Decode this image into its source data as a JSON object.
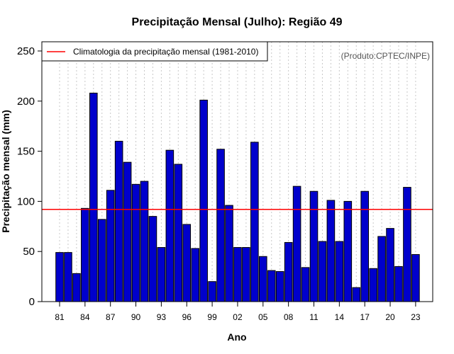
{
  "chart_data": {
    "type": "bar",
    "title": "Precipitação Mensal (Julho): Região 49",
    "xlabel": "Ano",
    "ylabel": "Precipitação mensal (mm)",
    "ylim": [
      0,
      250
    ],
    "yticks": [
      0,
      50,
      100,
      150,
      200,
      250
    ],
    "grid": "vertical dotted",
    "categories": [
      "1981",
      "1982",
      "1983",
      "1984",
      "1985",
      "1986",
      "1987",
      "1988",
      "1989",
      "1990",
      "1991",
      "1992",
      "1993",
      "1994",
      "1995",
      "1996",
      "1997",
      "1998",
      "1999",
      "2000",
      "2001",
      "2002",
      "2003",
      "2004",
      "2005",
      "2006",
      "2007",
      "2008",
      "2009",
      "2010",
      "2011",
      "2012",
      "2013",
      "2014",
      "2015",
      "2016",
      "2017",
      "2018",
      "2019",
      "2020",
      "2021",
      "2022",
      "2023"
    ],
    "xtick_labels": [
      "81",
      "84",
      "87",
      "90",
      "93",
      "96",
      "99",
      "02",
      "05",
      "08",
      "11",
      "14",
      "17",
      "20",
      "23"
    ],
    "xtick_positions": [
      "1981",
      "1984",
      "1987",
      "1990",
      "1993",
      "1996",
      "1999",
      "2002",
      "2005",
      "2008",
      "2011",
      "2014",
      "2017",
      "2020",
      "2023"
    ],
    "series": [
      {
        "name": "Precipitação mensal",
        "color": "#0000cc",
        "values": [
          49,
          49,
          28,
          93,
          208,
          82,
          111,
          160,
          139,
          117,
          120,
          85,
          54,
          151,
          137,
          77,
          53,
          201,
          20,
          152,
          96,
          54,
          54,
          159,
          45,
          31,
          30,
          59,
          115,
          34,
          110,
          60,
          101,
          60,
          100,
          14,
          110,
          33,
          65,
          73,
          35,
          114,
          47
        ]
      }
    ],
    "reference_line": {
      "label": "Climatologia da precipitação mensal (1981-2010)",
      "value": 92,
      "color": "#ff0000"
    },
    "legend_position": "top-left",
    "credit": "(Produto:CPTEC/INPE)"
  }
}
